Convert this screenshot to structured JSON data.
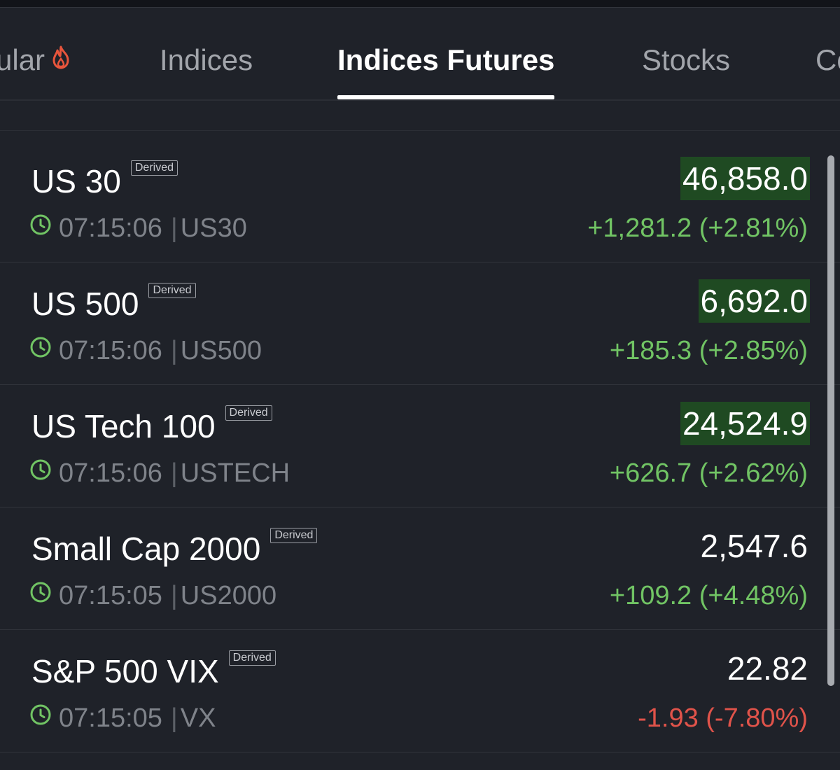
{
  "tabs": [
    {
      "label": "ular",
      "icon": "fire-icon",
      "active": false
    },
    {
      "label": "Indices",
      "active": false
    },
    {
      "label": "Indices Futures",
      "active": true
    },
    {
      "label": "Stocks",
      "active": false
    },
    {
      "label": "Co",
      "active": false
    }
  ],
  "colors": {
    "positive": "#71c464",
    "negative": "#e0534a",
    "highlight": "#1f4a22",
    "fire": "#e8553c"
  },
  "rows": [
    {
      "name": "US 30",
      "tag": "Derived",
      "time": "07:15:06",
      "symbol": "US30",
      "price": "46,858.0",
      "change": "+1,281.2 (+2.81%)",
      "direction": "up",
      "highlighted": true
    },
    {
      "name": "US 500",
      "tag": "Derived",
      "time": "07:15:06",
      "symbol": "US500",
      "price": "6,692.0",
      "change": "+185.3 (+2.85%)",
      "direction": "up",
      "highlighted": true
    },
    {
      "name": "US Tech 100",
      "tag": "Derived",
      "time": "07:15:06",
      "symbol": "USTECH",
      "price": "24,524.9",
      "change": "+626.7 (+2.62%)",
      "direction": "up",
      "highlighted": true
    },
    {
      "name": "Small Cap 2000",
      "tag": "Derived",
      "time": "07:15:05",
      "symbol": "US2000",
      "price": "2,547.6",
      "change": "+109.2 (+4.48%)",
      "direction": "up",
      "highlighted": false
    },
    {
      "name": "S&P 500 VIX",
      "tag": "Derived",
      "time": "07:15:05",
      "symbol": "VX",
      "price": "22.82",
      "change": "-1.93 (-7.80%)",
      "direction": "down",
      "highlighted": false
    }
  ]
}
